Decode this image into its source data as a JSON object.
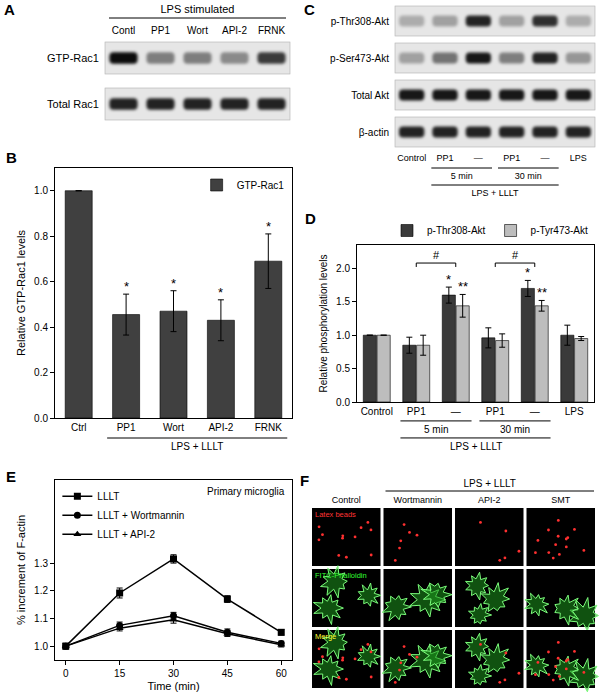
{
  "blots": [
    {
      "panel_label": "A",
      "header": {
        "text": "LPS stimulated",
        "from": 0,
        "to": 4
      },
      "lanes": [
        "Contl",
        "PP1",
        "Wort",
        "API-2",
        "FRNK"
      ],
      "rows": [
        {
          "name": "GTP-Rac1",
          "band_intensity": [
            0.95,
            0.45,
            0.45,
            0.4,
            0.75
          ]
        },
        {
          "name": "Total Rac1",
          "band_intensity": [
            0.85,
            0.85,
            0.85,
            0.85,
            0.85
          ]
        }
      ]
    },
    {
      "panel_label": "C",
      "lanes": [
        "Control",
        "PP1",
        "—",
        "PP1",
        "—",
        "LPS"
      ],
      "groups": [
        {
          "text": "5 min",
          "from": 1,
          "to": 2
        },
        {
          "text": "30 min",
          "from": 3,
          "to": 4
        },
        {
          "text": "LPS + LLLT",
          "from": 1,
          "to": 4
        }
      ],
      "rows": [
        {
          "name": "p-Thr308-Akt",
          "band_intensity": [
            0.25,
            0.3,
            0.85,
            0.3,
            0.8,
            0.25
          ]
        },
        {
          "name": "p-Ser473-Akt",
          "band_intensity": [
            0.3,
            0.5,
            0.9,
            0.45,
            0.85,
            0.35
          ]
        },
        {
          "name": "Total Akt",
          "band_intensity": [
            0.9,
            0.9,
            0.9,
            0.9,
            0.9,
            0.9
          ]
        },
        {
          "name": "β-actin",
          "band_intensity": [
            0.85,
            0.85,
            0.85,
            0.85,
            0.85,
            0.85
          ]
        }
      ]
    }
  ],
  "chart_data": [
    {
      "panel_label": "B",
      "type": "bar",
      "categories": [
        "Ctrl",
        "PP1",
        "Wort",
        "API-2",
        "FRNK"
      ],
      "series": [
        {
          "name": "GTP-Rac1",
          "color": "#404040",
          "values": [
            1.0,
            0.455,
            0.47,
            0.43,
            0.69
          ],
          "errors": [
            0,
            0.09,
            0.09,
            0.09,
            0.12
          ]
        }
      ],
      "y_label": "Relative GTP-Rac1 levels",
      "ylim": [
        0,
        1.1
      ],
      "yticks": [
        {
          "value": 0,
          "label": "0.0"
        },
        0.2,
        0.4,
        0.6,
        0.8,
        {
          "value": 1,
          "label": "1.0"
        }
      ],
      "grid": false,
      "legend": "upper right",
      "annotations": [
        {
          "index": 1,
          "series": 0,
          "text": "*"
        },
        {
          "index": 2,
          "series": 0,
          "text": "*"
        },
        {
          "index": 3,
          "series": 0,
          "text": "*"
        },
        {
          "index": 4,
          "series": 0,
          "text": "*"
        }
      ],
      "groups": [
        {
          "text": "LPS + LLLT",
          "from": 1,
          "to": 4
        }
      ]
    },
    {
      "panel_label": "D",
      "type": "bar",
      "categories": [
        "Control",
        "PP1",
        "—",
        "PP1",
        "—",
        "LPS"
      ],
      "series": [
        {
          "name": "p-Thr308-Akt",
          "color": "#3a3a3a",
          "values": [
            1.0,
            0.85,
            1.6,
            0.96,
            1.7,
            1.0
          ],
          "errors": [
            0,
            0.12,
            0.12,
            0.15,
            0.12,
            0.15
          ]
        },
        {
          "name": "p-Tyr473-Akt",
          "color": "#bdbdbd",
          "values": [
            1.0,
            0.85,
            1.44,
            0.92,
            1.44,
            0.95
          ],
          "errors": [
            0,
            0.15,
            0.17,
            0.1,
            0.08,
            0.03
          ]
        }
      ],
      "y_label": "Relative phosphorylation levels",
      "ylim": [
        0,
        2.35
      ],
      "yticks": [
        {
          "value": 0,
          "label": "0.0"
        },
        0.5,
        {
          "value": 1,
          "label": "1.0"
        },
        1.5,
        {
          "value": 2,
          "label": "2.0"
        }
      ],
      "grid": false,
      "legend": "top",
      "annotations": [
        {
          "index": 2,
          "series": 0,
          "text": "*"
        },
        {
          "index": 2,
          "series": 1,
          "text": "**"
        },
        {
          "index": 4,
          "series": 0,
          "text": "*"
        },
        {
          "index": 4,
          "series": 1,
          "text": "**"
        }
      ],
      "brackets": [
        {
          "from": 1,
          "to": 2,
          "y": 2.08,
          "text": "#"
        },
        {
          "from": 3,
          "to": 4,
          "y": 2.08,
          "text": "#"
        }
      ],
      "groups": [
        {
          "text": "5 min",
          "from": 1,
          "to": 2
        },
        {
          "text": "30 min",
          "from": 3,
          "to": 4
        },
        {
          "text": "LPS + LLLT",
          "from": 1,
          "to": 4
        }
      ]
    },
    {
      "panel_label": "E",
      "type": "line",
      "x": [
        0,
        15,
        30,
        45,
        60
      ],
      "series": [
        {
          "name": "LLLT",
          "color": "#000000",
          "marker": "square",
          "line_style": "solid",
          "values": [
            1.0,
            1.192,
            1.315,
            1.17,
            1.05
          ],
          "errors": [
            0.01,
            0.018,
            0.015,
            0.012,
            0.01
          ]
        },
        {
          "name": "LLLT + Wortmannin",
          "color": "#000000",
          "marker": "circle",
          "line_style": "solid",
          "values": [
            1.0,
            1.075,
            1.11,
            1.05,
            1.01
          ],
          "errors": [
            0.01,
            0.012,
            0.012,
            0.012,
            0.008
          ]
        },
        {
          "name": "LLLT + API-2",
          "color": "#000000",
          "marker": "triangle-up",
          "line_style": "solid",
          "values": [
            1.0,
            1.065,
            1.095,
            1.045,
            1.005
          ],
          "errors": [
            0.008,
            0.01,
            0.012,
            0.01,
            0.008
          ]
        }
      ],
      "x_label": "Time (min)",
      "y_label": "% increment of F-actin",
      "xlim": [
        -3,
        63
      ],
      "ylim": [
        0.95,
        1.6
      ],
      "xticks": [
        0,
        15,
        30,
        45,
        60
      ],
      "yticks": [
        {
          "value": 1,
          "label": "1.0"
        },
        1.1,
        1.2,
        1.3
      ],
      "grid": false,
      "legend": "upper left",
      "annotations": [
        {
          "text": "Primary microglia"
        }
      ]
    }
  ],
  "micrograph": {
    "panel_label": "F",
    "header": {
      "text": "LPS + LLLT",
      "from": 1,
      "to": 3
    },
    "columns": [
      "Control",
      "Wortmannin",
      "API-2",
      "SMT"
    ],
    "rows": [
      {
        "name": "Latex beads",
        "color": "#ff3333"
      },
      {
        "name": "FITC-Phalloidin",
        "color": "#33ff33"
      },
      {
        "name": "Merge",
        "color": "#ffff33"
      }
    ],
    "bead_counts": [
      12,
      6,
      5,
      14
    ]
  }
}
